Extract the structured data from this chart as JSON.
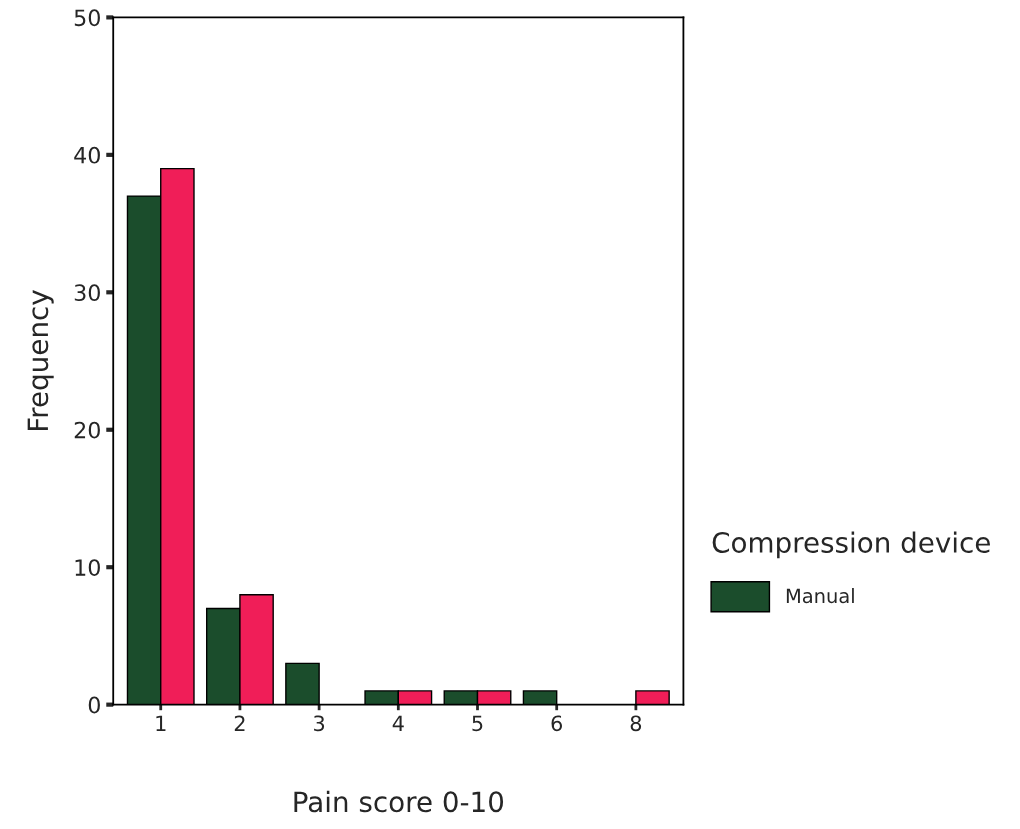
{
  "chart_data": {
    "type": "bar",
    "xlabel": "Pain score 0-10",
    "ylabel": "Frequency",
    "legend_title": "Compression device",
    "categories": [
      "1",
      "2",
      "3",
      "4",
      "5",
      "6",
      "8"
    ],
    "series": [
      {
        "name": "Manual",
        "color": "#1b4d2c",
        "values": [
          37,
          7,
          3,
          1,
          1,
          1,
          null
        ]
      },
      {
        "color": "#f01e58",
        "values": [
          39,
          8,
          null,
          1,
          1,
          null,
          1
        ]
      }
    ],
    "ylim": [
      0,
      50
    ],
    "yticks": [
      0,
      10,
      20,
      30,
      40,
      50
    ],
    "grid": false,
    "legend": "right"
  }
}
